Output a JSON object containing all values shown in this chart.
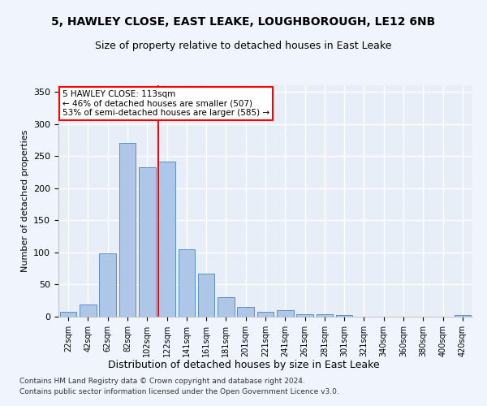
{
  "title": "5, HAWLEY CLOSE, EAST LEAKE, LOUGHBOROUGH, LE12 6NB",
  "subtitle": "Size of property relative to detached houses in East Leake",
  "xlabel": "Distribution of detached houses by size in East Leake",
  "ylabel": "Number of detached properties",
  "bin_labels": [
    "22sqm",
    "42sqm",
    "62sqm",
    "82sqm",
    "102sqm",
    "122sqm",
    "141sqm",
    "161sqm",
    "181sqm",
    "201sqm",
    "221sqm",
    "241sqm",
    "261sqm",
    "281sqm",
    "301sqm",
    "321sqm",
    "340sqm",
    "360sqm",
    "380sqm",
    "400sqm",
    "420sqm"
  ],
  "bar_heights": [
    7,
    19,
    99,
    270,
    232,
    241,
    105,
    67,
    30,
    15,
    8,
    10,
    4,
    4,
    3,
    0,
    0,
    0,
    0,
    0,
    3
  ],
  "bar_color": "#aec6e8",
  "bar_edgecolor": "#5a8fc2",
  "background_color": "#e8eef8",
  "fig_background_color": "#f0f4fc",
  "grid_color": "#ffffff",
  "annotation_box_text": "5 HAWLEY CLOSE: 113sqm\n← 46% of detached houses are smaller (507)\n53% of semi-detached houses are larger (585) →",
  "vertical_line_x": 4.58,
  "vertical_line_color": "red",
  "ylim": [
    0,
    360
  ],
  "yticks": [
    0,
    50,
    100,
    150,
    200,
    250,
    300,
    350
  ],
  "footnote1": "Contains HM Land Registry data © Crown copyright and database right 2024.",
  "footnote2": "Contains public sector information licensed under the Open Government Licence v3.0."
}
